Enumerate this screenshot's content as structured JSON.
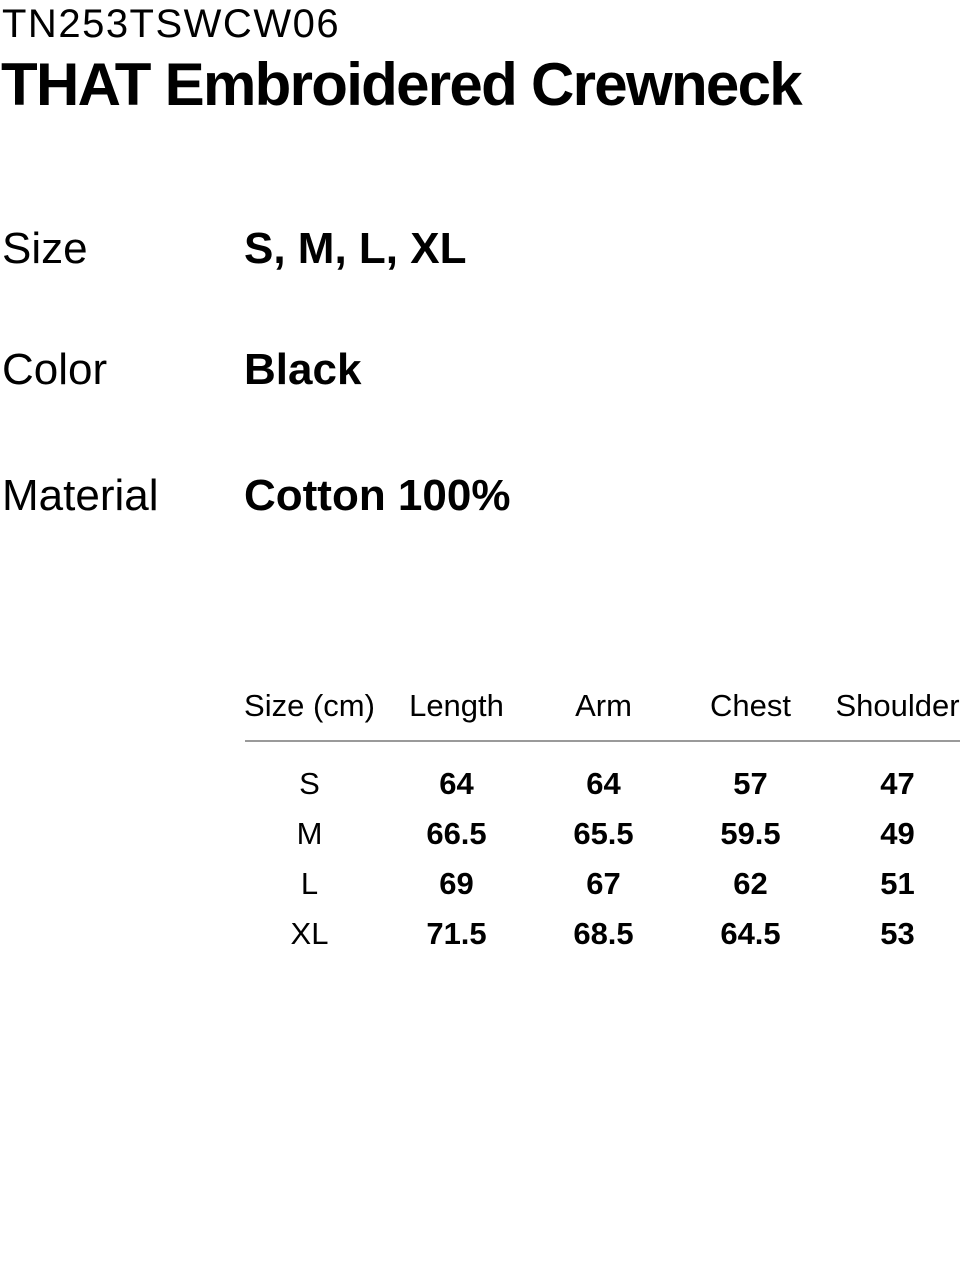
{
  "page": {
    "background_color": "#ffffff",
    "text_color": "#000000"
  },
  "header": {
    "product_code": "TN253TSWCW06",
    "product_title": "THAT Embroidered Crewneck"
  },
  "attributes": [
    {
      "label": "Size",
      "value": "S, M, L, XL"
    },
    {
      "label": "Color",
      "value": "Black"
    },
    {
      "label": "Material",
      "value": "Cotton 100%"
    }
  ],
  "size_table": {
    "divider_color": "#9a9a9a",
    "columns": [
      "Size (cm)",
      "Length",
      "Arm",
      "Chest",
      "Shoulder"
    ],
    "rows": [
      {
        "size": "S",
        "length": "64",
        "arm": "64",
        "chest": "57",
        "shoulder": "47"
      },
      {
        "size": "M",
        "length": "66.5",
        "arm": "65.5",
        "chest": "59.5",
        "shoulder": "49"
      },
      {
        "size": "L",
        "length": "69",
        "arm": "67",
        "chest": "62",
        "shoulder": "51"
      },
      {
        "size": "XL",
        "length": "71.5",
        "arm": "68.5",
        "chest": "64.5",
        "shoulder": "53"
      }
    ]
  }
}
